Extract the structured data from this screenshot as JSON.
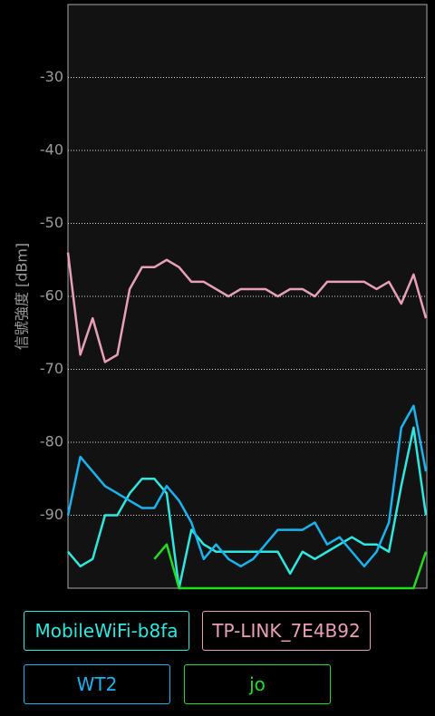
{
  "chart_data": {
    "type": "line",
    "y_label": "信號強度 [dBm]",
    "categories": [
      null,
      null,
      null,
      null,
      null,
      null,
      null,
      null,
      null,
      null,
      null,
      null,
      null,
      null,
      null,
      null,
      null,
      null,
      null,
      null,
      null,
      null,
      null,
      null,
      null,
      null,
      null,
      null,
      null,
      null
    ],
    "ylim": [
      -100,
      -20
    ],
    "yticks": [
      -30,
      -40,
      -50,
      -60,
      -70,
      -80,
      -90
    ],
    "grid": true,
    "series": [
      {
        "name": "MobileWiFi-b8fa",
        "color": "#2ee8e0",
        "values": [
          -95,
          -97,
          -96,
          -90,
          -90,
          -87,
          -85,
          -85,
          -87,
          -100,
          -92,
          -94,
          -95,
          -95,
          -95,
          -95,
          -95,
          -95,
          -98,
          -95,
          -96,
          -95,
          -94,
          -93,
          -94,
          -94,
          -95,
          -86,
          -78,
          -90
        ]
      },
      {
        "name": "TP-LINK_7E4B92",
        "color": "#e8a0b8",
        "values": [
          -54,
          -68,
          -63,
          -69,
          -68,
          -59,
          -56,
          -56,
          -55,
          -56,
          -58,
          -58,
          -59,
          -60,
          -59,
          -59,
          -59,
          -60,
          -59,
          -59,
          -60,
          -58,
          -58,
          -58,
          -58,
          -59,
          -58,
          -61,
          -57,
          -63
        ]
      },
      {
        "name": "WT2",
        "color": "#18b4f0",
        "values": [
          -90,
          -82,
          -84,
          -86,
          -87,
          -88,
          -89,
          -89,
          -86,
          -88,
          -91,
          -96,
          -94,
          -96,
          -97,
          -96,
          -94,
          -92,
          -92,
          -92,
          -91,
          -94,
          -93,
          -95,
          -97,
          -95,
          -91,
          -78,
          -75,
          -84
        ]
      },
      {
        "name": "jo",
        "color": "#22dd22",
        "values": [
          null,
          null,
          null,
          null,
          null,
          null,
          null,
          -96,
          -94,
          -100,
          -100,
          -100,
          -100,
          -100,
          -100,
          -100,
          -100,
          -100,
          -100,
          -100,
          -100,
          -100,
          -100,
          -100,
          -100,
          -100,
          -100,
          -100,
          -100,
          -95
        ]
      }
    ]
  }
}
